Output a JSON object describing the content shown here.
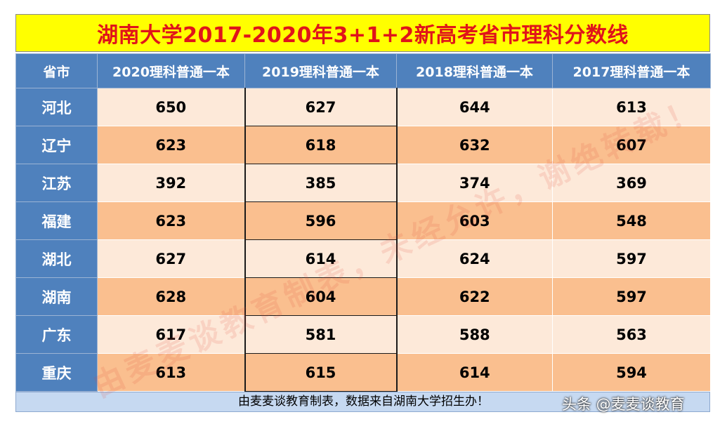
{
  "title": "湖南大学2017-2020年3+1+2新高考省市理科分数线",
  "table": {
    "headers": [
      "省市",
      "2020理科普通一本",
      "2019理科普通一本",
      "2018理科普通一本",
      "2017理科普通一本"
    ],
    "rows": [
      {
        "province": "河北",
        "values": [
          "650",
          "627",
          "644",
          "613"
        ]
      },
      {
        "province": "辽宁",
        "values": [
          "623",
          "618",
          "632",
          "607"
        ]
      },
      {
        "province": "江苏",
        "values": [
          "392",
          "385",
          "374",
          "369"
        ]
      },
      {
        "province": "福建",
        "values": [
          "623",
          "596",
          "603",
          "548"
        ]
      },
      {
        "province": "湖北",
        "values": [
          "627",
          "614",
          "624",
          "597"
        ]
      },
      {
        "province": "湖南",
        "values": [
          "628",
          "604",
          "622",
          "597"
        ]
      },
      {
        "province": "广东",
        "values": [
          "617",
          "581",
          "588",
          "563"
        ]
      },
      {
        "province": "重庆",
        "values": [
          "613",
          "615",
          "614",
          "594"
        ]
      }
    ]
  },
  "footer_note": "由麦麦谈教育制表，数据来自湖南大学招生办！",
  "watermark": "由麦麦谈教育制表，未经允许，谢绝转载！",
  "brand": "头条 @麦麦谈教育",
  "colors": {
    "title_bg": "#ffff00",
    "title_text": "#e0141a",
    "header_bg": "#4f81bd",
    "row_light": "#fde9d9",
    "row_dark": "#fabf8f",
    "footer_bg": "#c6d9f1"
  }
}
